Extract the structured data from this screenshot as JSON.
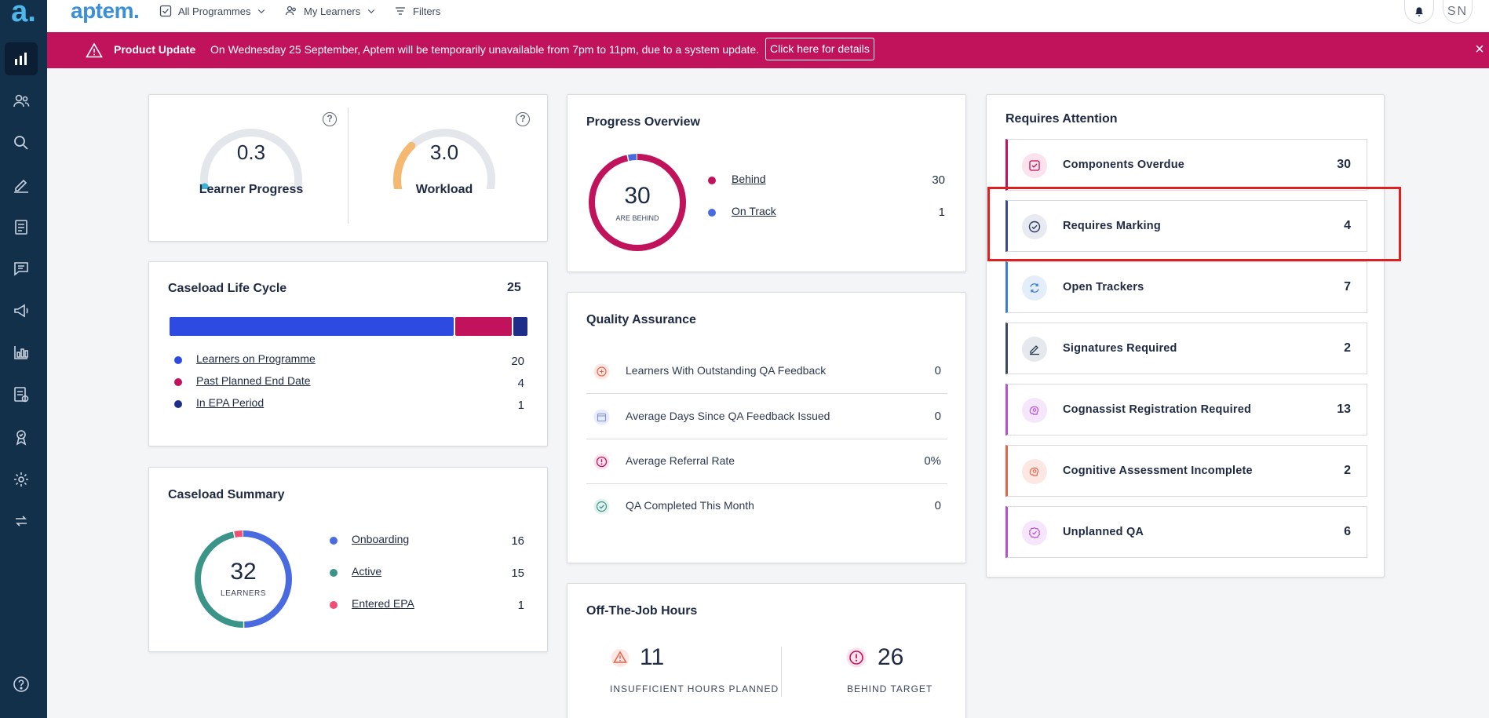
{
  "brand": {
    "logo": "a.",
    "name": "aptem."
  },
  "topbar": {
    "programmes": "All Programmes",
    "learners": "My Learners",
    "filters": "Filters",
    "user_initials": "SN"
  },
  "banner": {
    "title": "Product Update",
    "message": "On Wednesday 25 September, Aptem will be temporarily unavailable from 7pm to 11pm, due to a system update.",
    "link": "Click here for details",
    "close": "×"
  },
  "sidebar": {
    "items": [
      "dashboard",
      "learners",
      "search",
      "marking",
      "reports",
      "messages",
      "announcements",
      "analytics",
      "documents",
      "achievements",
      "settings",
      "sync"
    ],
    "help": "?"
  },
  "gauges": {
    "learner_progress": {
      "value": "0.3",
      "label": "Learner Progress",
      "fraction": 0.05,
      "color": "#3bb4d9"
    },
    "workload": {
      "value": "3.0",
      "label": "Workload",
      "fraction": 0.3,
      "color": "#f5b871"
    }
  },
  "progress_overview": {
    "title": "Progress Overview",
    "center_value": "30",
    "center_label": "ARE BEHIND",
    "legend": [
      {
        "label": "Behind",
        "value": "30",
        "color": "#c1125c"
      },
      {
        "label": "On Track",
        "value": "1",
        "color": "#4a6be0"
      }
    ]
  },
  "caseload_lifecycle": {
    "title": "Caseload Life Cycle",
    "total": "25",
    "legend": [
      {
        "label": "Learners on Programme",
        "value": "20",
        "color": "#2d4be0"
      },
      {
        "label": "Past Planned End Date",
        "value": "4",
        "color": "#c1125c"
      },
      {
        "label": "In EPA Period",
        "value": "1",
        "color": "#1e2e88"
      }
    ]
  },
  "caseload_summary": {
    "title": "Caseload Summary",
    "center_value": "32",
    "center_label": "LEARNERS",
    "legend": [
      {
        "label": "Onboarding",
        "value": "16",
        "color": "#4a6be0"
      },
      {
        "label": "Active",
        "value": "15",
        "color": "#3a9488"
      },
      {
        "label": "Entered EPA",
        "value": "1",
        "color": "#ef4f74"
      }
    ]
  },
  "quality_assurance": {
    "title": "Quality Assurance",
    "rows": [
      {
        "label": "Learners With Outstanding QA Feedback",
        "value": "0",
        "icon": "feedback-icon",
        "color": "#e8624a"
      },
      {
        "label": "Average Days Since QA Feedback Issued",
        "value": "0",
        "icon": "calendar-icon",
        "color": "#7b8ee8"
      },
      {
        "label": "Average Referral Rate",
        "value": "0%",
        "icon": "alert-icon",
        "color": "#c1125c"
      },
      {
        "label": "QA Completed This Month",
        "value": "0",
        "icon": "check-circle-icon",
        "color": "#3a9488"
      }
    ]
  },
  "off_the_job": {
    "title": "Off-The-Job Hours",
    "insufficient": {
      "value": "11",
      "label": "INSUFFICIENT HOURS PLANNED"
    },
    "behind": {
      "value": "26",
      "label": "BEHIND TARGET"
    }
  },
  "requires_attention": {
    "title": "Requires Attention",
    "items": [
      {
        "label": "Components Overdue",
        "value": "30",
        "color": "#c1125c",
        "icon": "checkbox-icon"
      },
      {
        "label": "Requires Marking",
        "value": "4",
        "color": "#3b4a8a",
        "icon": "check-circle-icon"
      },
      {
        "label": "Open Trackers",
        "value": "7",
        "color": "#3b7be0",
        "icon": "refresh-icon"
      },
      {
        "label": "Signatures Required",
        "value": "2",
        "color": "#3a4a62",
        "icon": "signature-icon"
      },
      {
        "label": "Cognassist Registration Required",
        "value": "13",
        "color": "#b44fd6",
        "icon": "brain-icon"
      },
      {
        "label": "Cognitive Assessment Incomplete",
        "value": "2",
        "color": "#e8624a",
        "icon": "brain-gear-icon"
      },
      {
        "label": "Unplanned QA",
        "value": "6",
        "color": "#b44fd6",
        "icon": "badge-check-icon"
      }
    ]
  }
}
